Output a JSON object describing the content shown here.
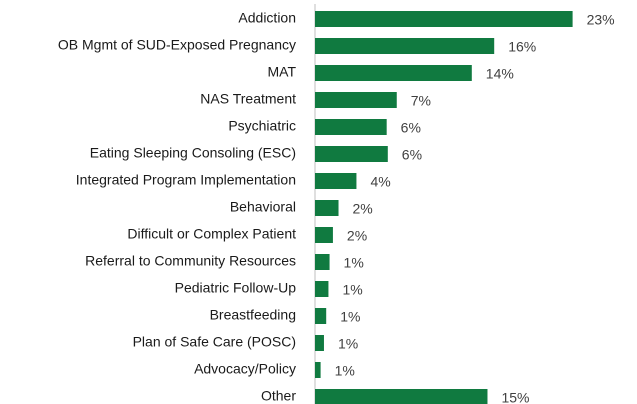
{
  "chart_data": {
    "type": "barh",
    "categories": [
      "Addiction",
      "OB Mgmt of SUD-Exposed Pregnancy",
      "MAT",
      "NAS Treatment",
      "Psychiatric",
      "Eating Sleeping Consoling (ESC)",
      "Integrated Program Implementation",
      "Behavioral",
      "Difficult or Complex Patient",
      "Referral to Community Resources",
      "Pediatric Follow-Up",
      "Breastfeeding",
      "Plan of Safe Care (POSC)",
      "Advocacy/Policy",
      "Other"
    ],
    "values": [
      23.0,
      16.0,
      14.0,
      7.3,
      6.4,
      6.5,
      3.7,
      2.1,
      1.6,
      1.3,
      1.2,
      1.0,
      0.8,
      0.5,
      15.4
    ],
    "value_labels": [
      "23%",
      "16%",
      "14%",
      "7%",
      "6%",
      "6%",
      "4%",
      "2%",
      "2%",
      "1%",
      "1%",
      "1%",
      "1%",
      "1%",
      "15%"
    ],
    "color": "#107a40",
    "xlim": [
      0,
      25
    ]
  }
}
